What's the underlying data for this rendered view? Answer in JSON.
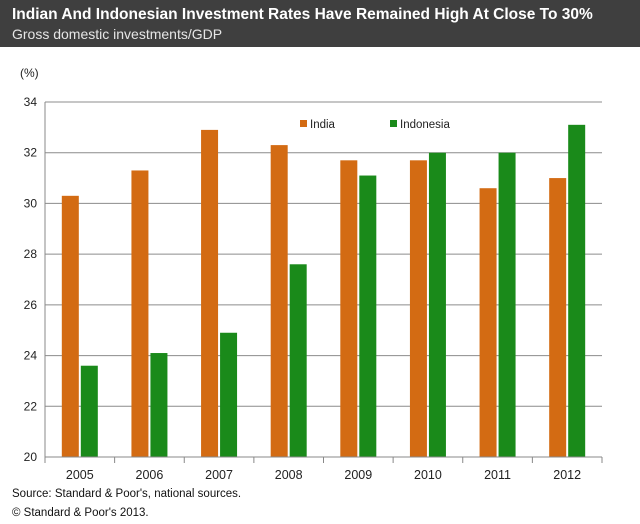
{
  "header": {
    "title": "Indian And Indonesian Investment Rates Have Remained High At Close To 30%",
    "subtitle": "Gross domestic investments/GDP"
  },
  "footer": {
    "source": "Source: Standard & Poor's, national sources.",
    "copyright": "© Standard & Poor's 2013."
  },
  "colors": {
    "india": "#d36b13",
    "indonesia": "#1a8a1a",
    "gridline": "#8c8c8c",
    "header_bg": "#3f3f3f"
  },
  "chart_data": {
    "type": "bar",
    "ylabel": "(%)",
    "xlabel": "",
    "ylim": [
      20,
      34
    ],
    "yticks": [
      20,
      22,
      24,
      26,
      28,
      30,
      32,
      34
    ],
    "grid": true,
    "legend_position": "top-right",
    "categories": [
      "2005",
      "2006",
      "2007",
      "2008",
      "2009",
      "2010",
      "2011",
      "2012"
    ],
    "series": [
      {
        "name": "India",
        "values": [
          30.3,
          31.3,
          32.9,
          32.3,
          31.7,
          31.7,
          30.6,
          31.0
        ]
      },
      {
        "name": "Indonesia",
        "values": [
          23.6,
          24.1,
          24.9,
          27.6,
          31.1,
          32.0,
          32.0,
          33.1
        ]
      }
    ]
  }
}
